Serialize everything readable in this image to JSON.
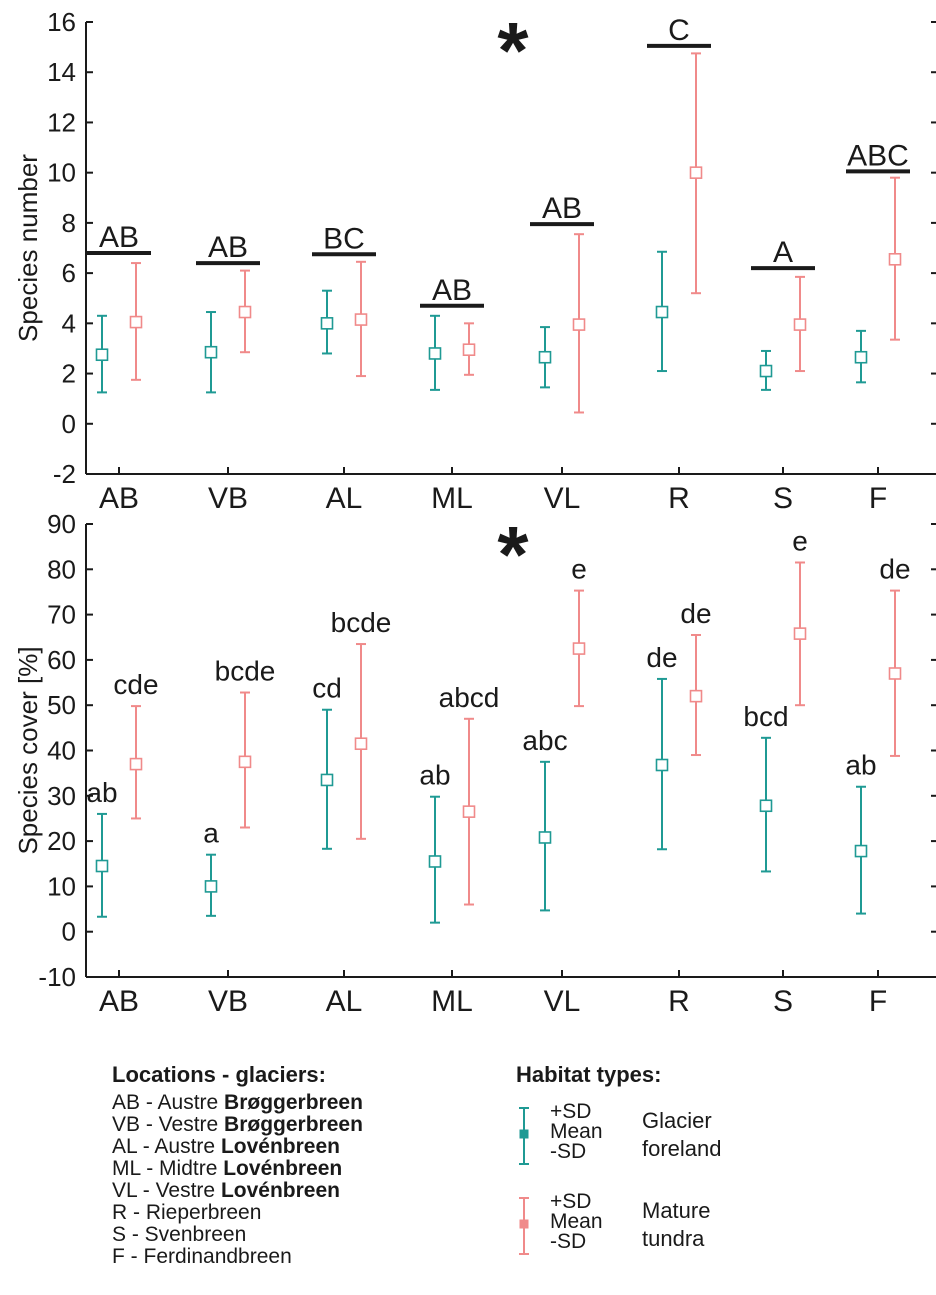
{
  "colors": {
    "glacier_foreland": "#1f9a94",
    "mature_tundra": "#f08a8a",
    "axis": "#1a1a1a"
  },
  "chart_data": [
    {
      "type": "errorbar",
      "ylabel": "Species number",
      "ylim": [
        -2,
        16
      ],
      "yticks": [
        -2,
        0,
        2,
        4,
        6,
        8,
        10,
        12,
        14,
        16
      ],
      "categories": [
        "AB",
        "VB",
        "AL",
        "ML",
        "VL",
        "R",
        "S",
        "F"
      ],
      "significance_marker": "*",
      "series": [
        {
          "name": "Glacier foreland",
          "color": "#1f9a94",
          "mean": [
            2.75,
            2.85,
            4.0,
            2.8,
            2.65,
            4.45,
            2.1,
            2.65
          ],
          "plus_sd": [
            4.3,
            4.45,
            5.3,
            4.3,
            3.85,
            6.85,
            2.9,
            3.7
          ],
          "minus_sd": [
            1.25,
            1.25,
            2.8,
            1.35,
            1.45,
            2.1,
            1.35,
            1.65
          ]
        },
        {
          "name": "Mature tundra",
          "color": "#f08a8a",
          "mean": [
            4.05,
            4.45,
            4.15,
            2.95,
            3.95,
            10.0,
            3.95,
            6.55
          ],
          "plus_sd": [
            6.4,
            6.1,
            6.45,
            4.0,
            7.55,
            14.75,
            5.85,
            9.8
          ],
          "minus_sd": [
            1.75,
            2.85,
            1.9,
            1.95,
            0.45,
            5.2,
            2.1,
            3.35
          ]
        }
      ],
      "group_labels": [
        {
          "category": "AB",
          "label": "AB",
          "bar_y": 6.8
        },
        {
          "category": "VB",
          "label": "AB",
          "bar_y": 6.4
        },
        {
          "category": "AL",
          "label": "BC",
          "bar_y": 6.75
        },
        {
          "category": "ML",
          "label": "AB",
          "bar_y": 4.7
        },
        {
          "category": "VL",
          "label": "AB",
          "bar_y": 7.95
        },
        {
          "category": "R",
          "label": "C",
          "bar_y": 15.05
        },
        {
          "category": "S",
          "label": "A",
          "bar_y": 6.2
        },
        {
          "category": "F",
          "label": "ABC",
          "bar_y": 10.05
        }
      ]
    },
    {
      "type": "errorbar",
      "ylabel": "Species cover [%]",
      "ylim": [
        -10,
        90
      ],
      "yticks": [
        -10,
        0,
        10,
        20,
        30,
        40,
        50,
        60,
        70,
        80,
        90
      ],
      "categories": [
        "AB",
        "VB",
        "AL",
        "ML",
        "VL",
        "R",
        "S",
        "F"
      ],
      "significance_marker": "*",
      "series": [
        {
          "name": "Glacier foreland",
          "color": "#1f9a94",
          "mean": [
            14.5,
            10.0,
            33.5,
            15.5,
            20.8,
            36.8,
            27.8,
            17.8
          ],
          "plus_sd": [
            26.0,
            17.0,
            49.0,
            29.8,
            37.5,
            55.8,
            42.8,
            32.0
          ],
          "minus_sd": [
            3.3,
            3.5,
            18.3,
            2.0,
            4.7,
            18.2,
            13.3,
            4.0
          ],
          "letters": [
            "ab",
            "a",
            "cd",
            "ab",
            "abc",
            "de",
            "bcd",
            "ab"
          ]
        },
        {
          "name": "Mature tundra",
          "color": "#f08a8a",
          "mean": [
            37.0,
            37.5,
            41.5,
            26.5,
            62.5,
            52.0,
            65.8,
            57.0
          ],
          "plus_sd": [
            49.8,
            52.8,
            63.5,
            47.0,
            75.3,
            65.5,
            81.5,
            75.3
          ],
          "minus_sd": [
            25.0,
            23.0,
            20.5,
            6.0,
            49.8,
            39.0,
            50.0,
            38.8
          ],
          "letters": [
            "cde",
            "bcde",
            "bcde",
            "abcd",
            "e",
            "de",
            "e",
            "de"
          ]
        }
      ]
    }
  ],
  "legend": {
    "locations_title": "Locations - glaciers:",
    "locations": [
      {
        "text": "AB - Austre ",
        "bold": "Brøggerbreen"
      },
      {
        "text": "VB - Vestre ",
        "bold": "Brøggerbreen"
      },
      {
        "text": "AL  - Austre ",
        "bold": "Lovénbreen"
      },
      {
        "text": "ML - Midtre ",
        "bold": "Lovénbreen"
      },
      {
        "text": "VL - Vestre ",
        "bold": "Lovénbreen"
      },
      {
        "text": "R - Rieperbreen",
        "bold": ""
      },
      {
        "text": "S - Svenbreen",
        "bold": ""
      },
      {
        "text": "F - Ferdinandbreen",
        "bold": ""
      }
    ],
    "habitat_title": "Habitat types:",
    "habitats": [
      {
        "plus_sd": "+SD",
        "mean": "Mean",
        "minus_sd": "-SD",
        "name_line1": "Glacier",
        "name_line2": "foreland",
        "color": "#1f9a94"
      },
      {
        "plus_sd": "+SD",
        "mean": "Mean",
        "minus_sd": "-SD",
        "name_line1": "Mature",
        "name_line2": "tundra",
        "color": "#f08a8a"
      }
    ]
  }
}
